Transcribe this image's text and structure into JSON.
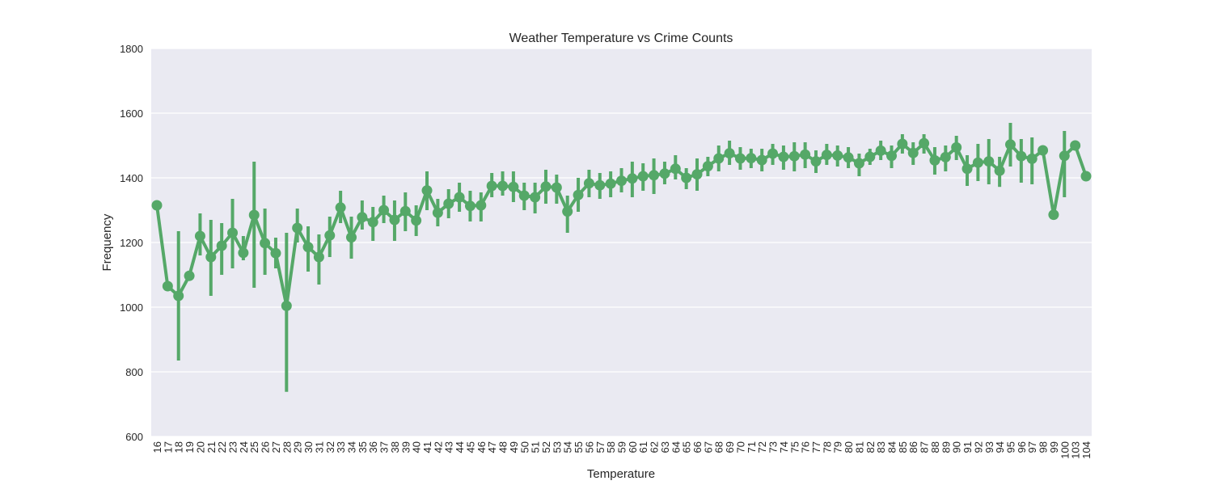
{
  "chart_data": {
    "type": "line",
    "title": "Weather Temperature vs Crime Counts",
    "xlabel": "Temperature",
    "ylabel": "Frequency",
    "ylim": [
      600,
      1800
    ],
    "yticks": [
      600,
      800,
      1000,
      1200,
      1400,
      1600,
      1800
    ],
    "grid": true,
    "categories": [
      "16",
      "17",
      "18",
      "19",
      "20",
      "21",
      "22",
      "23",
      "24",
      "25",
      "26",
      "27",
      "28",
      "29",
      "30",
      "31",
      "32",
      "33",
      "34",
      "35",
      "36",
      "37",
      "38",
      "39",
      "40",
      "41",
      "42",
      "43",
      "44",
      "45",
      "46",
      "47",
      "48",
      "49",
      "50",
      "51",
      "52",
      "53",
      "54",
      "55",
      "56",
      "57",
      "58",
      "59",
      "60",
      "61",
      "62",
      "63",
      "64",
      "65",
      "66",
      "67",
      "68",
      "69",
      "70",
      "71",
      "72",
      "73",
      "74",
      "75",
      "76",
      "77",
      "78",
      "79",
      "80",
      "81",
      "82",
      "83",
      "84",
      "85",
      "86",
      "87",
      "88",
      "89",
      "90",
      "91",
      "92",
      "93",
      "94",
      "95",
      "96",
      "97",
      "98",
      "99",
      "100",
      "103",
      "104"
    ],
    "series": [
      {
        "values": [
          1315,
          1065,
          1035,
          1097,
          1220,
          1155,
          1190,
          1230,
          1168,
          1285,
          1198,
          1167,
          1004,
          1245,
          1186,
          1155,
          1222,
          1308,
          1216,
          1278,
          1263,
          1300,
          1270,
          1297,
          1268,
          1361,
          1292,
          1320,
          1340,
          1313,
          1315,
          1375,
          1375,
          1372,
          1345,
          1340,
          1373,
          1370,
          1296,
          1347,
          1383,
          1377,
          1382,
          1391,
          1398,
          1405,
          1408,
          1413,
          1428,
          1400,
          1411,
          1436,
          1460,
          1476,
          1460,
          1461,
          1455,
          1475,
          1465,
          1467,
          1472,
          1451,
          1471,
          1469,
          1463,
          1445,
          1465,
          1484,
          1468,
          1505,
          1477,
          1507,
          1454,
          1464,
          1494,
          1428,
          1447,
          1451,
          1422,
          1503,
          1467,
          1459,
          1485,
          1286,
          1468,
          1500,
          1405
        ],
        "err_low": [
          null,
          null,
          835,
          null,
          1160,
          1035,
          1100,
          1120,
          1145,
          1060,
          1100,
          1120,
          738,
          1200,
          1110,
          1070,
          1155,
          1260,
          1150,
          1240,
          1205,
          1260,
          1205,
          1235,
          1220,
          1300,
          1250,
          1275,
          1295,
          1265,
          1265,
          1340,
          1345,
          1325,
          1300,
          1290,
          1320,
          1320,
          1230,
          1295,
          1340,
          1335,
          1340,
          1355,
          1340,
          1360,
          1350,
          1380,
          1395,
          1365,
          1360,
          1405,
          1420,
          1440,
          1425,
          1430,
          1420,
          1440,
          1425,
          1420,
          1430,
          1415,
          1440,
          1435,
          1430,
          1405,
          1440,
          1455,
          1430,
          1475,
          1440,
          1475,
          1410,
          1420,
          1455,
          1375,
          1390,
          1380,
          1372,
          1435,
          1385,
          1380,
          null,
          null,
          1340,
          null,
          null
        ],
        "err_high": [
          null,
          null,
          1235,
          null,
          1290,
          1270,
          1260,
          1335,
          1220,
          1450,
          1305,
          1215,
          1230,
          1305,
          1250,
          1225,
          1280,
          1360,
          1280,
          1330,
          1310,
          1345,
          1330,
          1355,
          1315,
          1420,
          1335,
          1365,
          1385,
          1360,
          1355,
          1415,
          1420,
          1420,
          1385,
          1385,
          1425,
          1410,
          1345,
          1400,
          1425,
          1415,
          1420,
          1430,
          1450,
          1445,
          1460,
          1450,
          1470,
          1430,
          1460,
          1465,
          1500,
          1515,
          1495,
          1490,
          1490,
          1505,
          1500,
          1510,
          1510,
          1485,
          1505,
          1500,
          1495,
          1475,
          1490,
          1515,
          1500,
          1535,
          1510,
          1535,
          1495,
          1500,
          1530,
          1470,
          1505,
          1520,
          1465,
          1570,
          1520,
          1525,
          null,
          null,
          1545,
          null,
          null
        ]
      }
    ],
    "colors": {
      "line": "#55a868",
      "plot_bg": "#eaeaf2",
      "grid": "#ffffff",
      "text": "#262626"
    }
  }
}
